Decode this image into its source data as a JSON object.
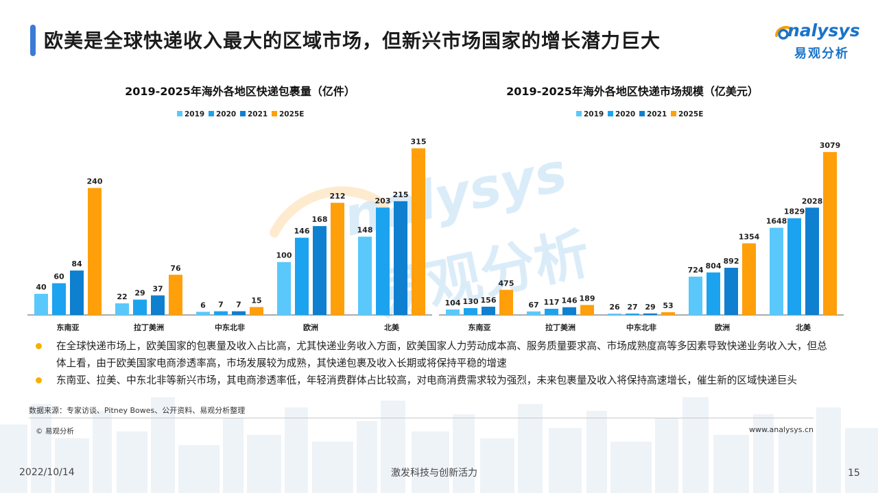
{
  "header": {
    "title": "欧美是全球快递收入最大的区域市场，但新兴市场国家的增长潜力巨大",
    "logo_en": "nalysys",
    "logo_cn": "易观分析"
  },
  "watermark": {
    "en": "nalysys",
    "cn": "易观分析"
  },
  "colors": {
    "2019": "#5ac8fa",
    "2020": "#1ba3f0",
    "2021": "#0f7fcf",
    "2025E": "#ff9f0a",
    "bullet": "#f5b000",
    "accent": "#3a7bd5"
  },
  "chart_data": [
    {
      "type": "bar",
      "title": "2019-2025年海外各地区快递包裹量（亿件）",
      "legend_position": "top-center",
      "categories": [
        "东南亚",
        "拉丁美洲",
        "中东北非",
        "欧洲",
        "北美"
      ],
      "series": [
        {
          "name": "2019",
          "values": [
            40,
            22,
            6,
            100,
            148
          ]
        },
        {
          "name": "2020",
          "values": [
            60,
            29,
            7,
            146,
            203
          ]
        },
        {
          "name": "2021",
          "values": [
            84,
            37,
            7,
            168,
            215
          ]
        },
        {
          "name": "2025E",
          "values": [
            240,
            76,
            15,
            212,
            315
          ]
        }
      ],
      "ylim": [
        0,
        330
      ],
      "grid": false
    },
    {
      "type": "bar",
      "title": "2019-2025年海外各地区快递市场规模（亿美元）",
      "legend_position": "top-center",
      "categories": [
        "东南亚",
        "拉丁美洲",
        "中东北非",
        "欧洲",
        "北美"
      ],
      "series": [
        {
          "name": "2019",
          "values": [
            104,
            67,
            26,
            724,
            1648
          ]
        },
        {
          "name": "2020",
          "values": [
            130,
            117,
            27,
            804,
            1829
          ]
        },
        {
          "name": "2021",
          "values": [
            156,
            146,
            29,
            892,
            2028
          ]
        },
        {
          "name": "2025E",
          "values": [
            475,
            189,
            53,
            1354,
            3079
          ]
        }
      ],
      "ylim": [
        0,
        3300
      ],
      "grid": false
    }
  ],
  "bullets": [
    "在全球快递市场上，欧美国家的包裹量及收入占比高，尤其快递业务收入方面，欧美国家人力劳动成本高、服务质量要求高、市场成熟度高等多因素导致快递业务收入大，但总体上看，由于欧美国家电商渗透率高，市场发展较为成熟，其快递包裹及收入长期或将保持平稳的增速",
    "东南亚、拉美、中东北非等新兴市场，其电商渗透率低，年轻消费群体占比较高，对电商消费需求较为强烈，未来包裹量及收入将保持高速增长，催生新的区域快递巨头"
  ],
  "footer": {
    "source": "数据来源：专家访谈、Pitney Bowes、公开资料、易观分析整理",
    "copyright": "© 易观分析",
    "website": "www.analysys.cn",
    "date": "2022/10/14",
    "slogan": "激发科技与创新活力",
    "page_number": "15"
  }
}
